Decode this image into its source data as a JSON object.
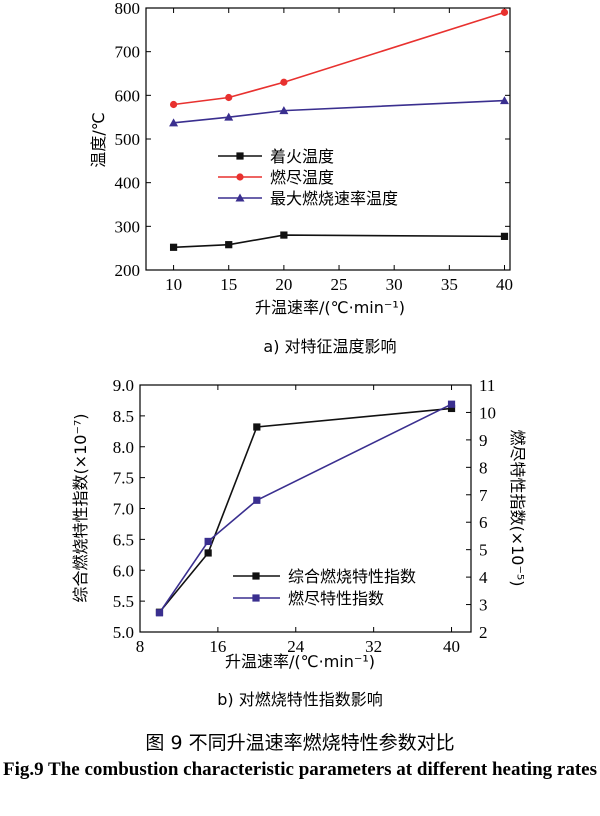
{
  "chart_data": [
    {
      "type": "line",
      "subtitle": "a) 对特征温度影响",
      "xlabel": "升温速率/(℃·min⁻¹)",
      "ylabel": "温度/℃",
      "x": [
        10,
        15,
        20,
        40
      ],
      "xticks": [
        10,
        15,
        20,
        25,
        30,
        35,
        40
      ],
      "yticks": [
        200,
        300,
        400,
        500,
        600,
        700,
        800
      ],
      "xlim": [
        7.5,
        40.5
      ],
      "ylim": [
        200,
        800
      ],
      "legend_position": "center-left",
      "series": [
        {
          "name": "着火温度",
          "color": "#111111",
          "marker": "square",
          "values": [
            252,
            258,
            280,
            277
          ]
        },
        {
          "name": "燃尽温度",
          "color": "#e8312f",
          "marker": "circle",
          "values": [
            579,
            595,
            630,
            790
          ]
        },
        {
          "name": "最大燃烧速率温度",
          "color": "#3a2f8f",
          "marker": "triangle",
          "values": [
            537,
            550,
            565,
            588
          ]
        }
      ]
    },
    {
      "type": "line",
      "subtitle": "b) 对燃烧特性指数影响",
      "xlabel": "升温速率/(℃·min⁻¹)",
      "ylabel_left": "综合燃烧特性指数(×10⁻⁷)",
      "ylabel_right": "燃尽特性指数(×10⁻⁵)",
      "x": [
        10,
        15,
        20,
        40
      ],
      "xticks": [
        8,
        16,
        24,
        32,
        40
      ],
      "yticks_left": [
        5.0,
        5.5,
        6.0,
        6.5,
        7.0,
        7.5,
        8.0,
        8.5,
        9.0
      ],
      "yticks_right": [
        2,
        3,
        4,
        5,
        6,
        7,
        8,
        9,
        10,
        11
      ],
      "xlim": [
        8,
        42
      ],
      "ylim_left": [
        5.0,
        9.0
      ],
      "ylim_right": [
        2,
        11
      ],
      "legend_position": "center-right",
      "series": [
        {
          "name": "综合燃烧特性指数",
          "axis": "left",
          "color": "#111111",
          "marker": "square",
          "values": [
            5.32,
            6.28,
            8.32,
            8.62
          ]
        },
        {
          "name": "燃尽特性指数",
          "axis": "right",
          "color": "#3a2f8f",
          "marker": "square",
          "values": [
            2.7,
            5.3,
            6.8,
            10.3
          ]
        }
      ]
    }
  ],
  "caption_cn": "图 9  不同升温速率燃烧特性参数对比",
  "caption_en": "Fig.9 The combustion characteristic parameters at different heating rates"
}
